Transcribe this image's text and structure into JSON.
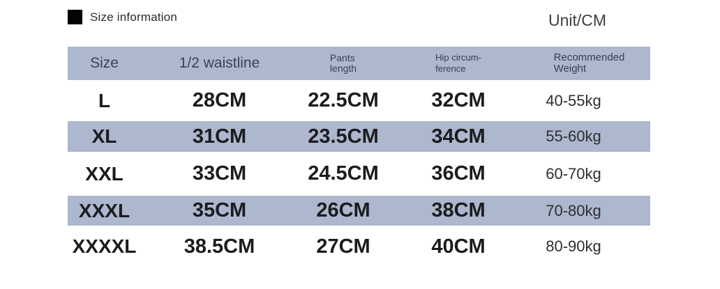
{
  "colors": {
    "stripe": "#adb7ce",
    "background": "#ffffff"
  },
  "header": {
    "title": "Size information",
    "unit_label": "Unit/CM"
  },
  "table": {
    "header": {
      "size": "Size",
      "waistline": "1/2 waistline",
      "pants_line1": "Pants",
      "pants_line2": "length",
      "hip_line1": "Hip circum-",
      "hip_line2": "ference",
      "weight_line1": "Recommended",
      "weight_line2": "Weight"
    }
  },
  "chart_data": {
    "type": "table",
    "title": "Size information",
    "unit": "Unit/CM",
    "columns": [
      "Size",
      "1/2 waistline",
      "Pants length",
      "Hip circum-ference",
      "Recommended Weight"
    ],
    "rows": [
      [
        "L",
        "28CM",
        "22.5CM",
        "32CM",
        "40-55kg"
      ],
      [
        "XL",
        "31CM",
        "23.5CM",
        "34CM",
        "55-60kg"
      ],
      [
        "XXL",
        "33CM",
        "24.5CM",
        "36CM",
        "60-70kg"
      ],
      [
        "XXXL",
        "35CM",
        "26CM",
        "38CM",
        "70-80kg"
      ],
      [
        "XXXXL",
        "38.5CM",
        "27CM",
        "40CM",
        "80-90kg"
      ]
    ]
  }
}
